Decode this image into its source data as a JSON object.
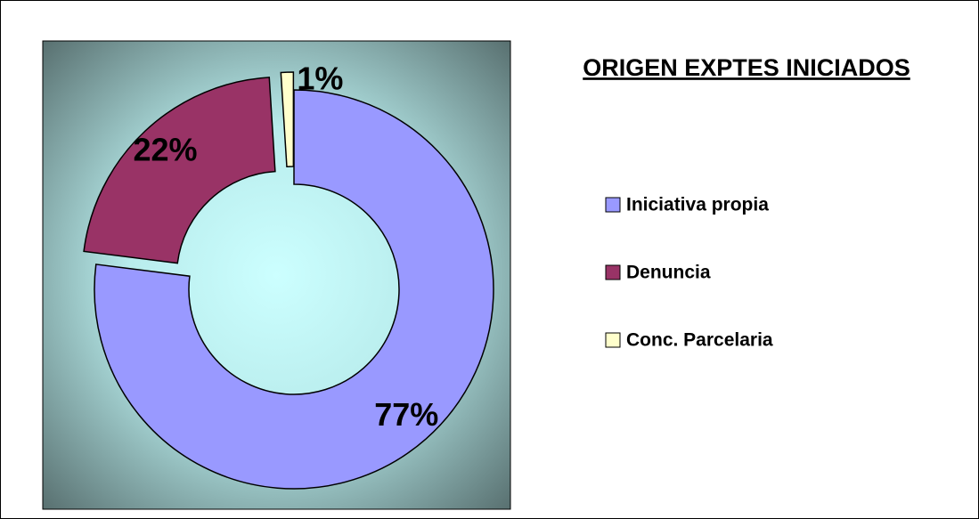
{
  "chart_data": {
    "type": "donut",
    "title": "ORIGEN EXPTES INICIADOS",
    "categories": [
      "Iniciativa propia",
      "Denuncia",
      "Conc. Parcelaria"
    ],
    "values": [
      77,
      22,
      1
    ],
    "value_labels": [
      "77%",
      "22%",
      "1%"
    ],
    "colors": [
      "#9999ff",
      "#993366",
      "#ffffcc"
    ],
    "legend": "right"
  }
}
